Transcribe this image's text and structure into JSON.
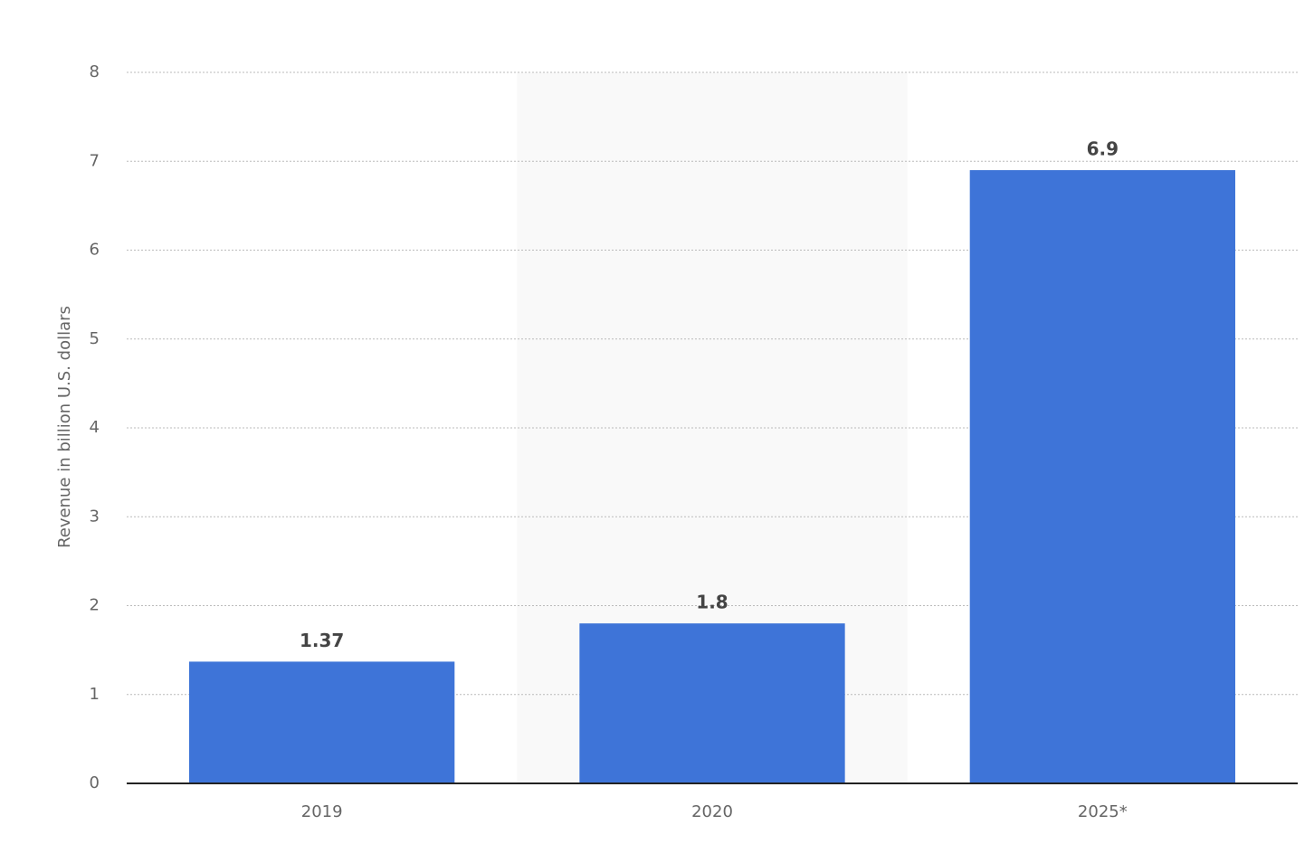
{
  "chart_data": {
    "type": "bar",
    "y_label": "Revenue in billion U.S. dollars",
    "categories": [
      "2019",
      "2020",
      "2025*"
    ],
    "values": [
      1.37,
      1.8,
      6.9
    ],
    "color": "#3e74d8",
    "ylim": [
      0,
      8
    ],
    "yticks": [
      0,
      1,
      2,
      3,
      4,
      5,
      6,
      7,
      8
    ],
    "grid": true
  }
}
